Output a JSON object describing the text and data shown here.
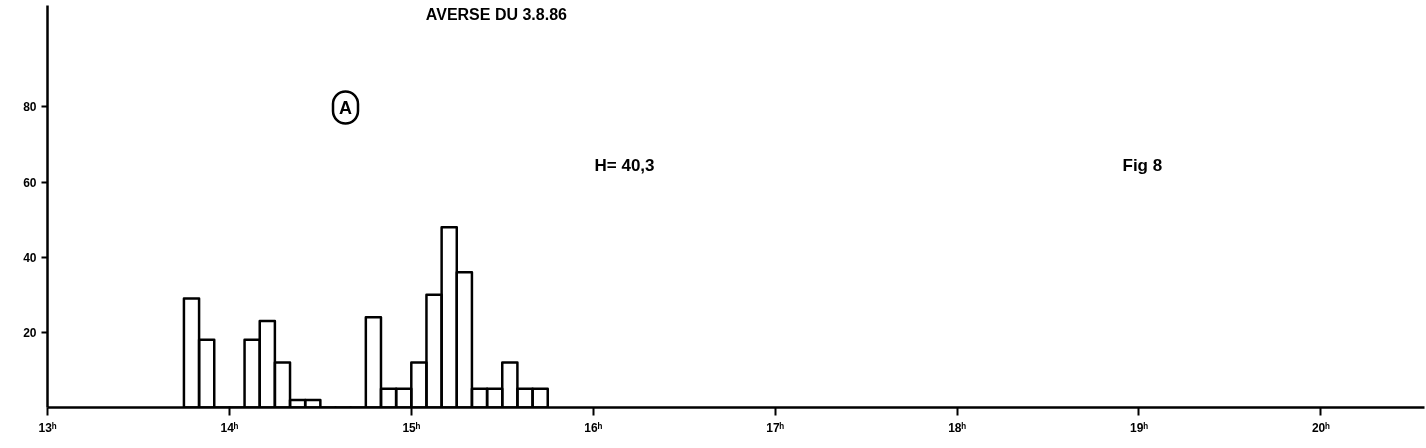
{
  "chart_data": {
    "type": "histogram",
    "title": "AVERSE DU  3.8.86",
    "bins": [
      13.75,
      13.8333,
      13.9167,
      14.0,
      14.0833,
      14.1667,
      14.25,
      14.3333,
      14.4167,
      14.5,
      14.5833,
      14.6667,
      14.75,
      14.8333,
      14.9167,
      15.0,
      15.0833,
      15.1667,
      15.25,
      15.3333,
      15.4167,
      15.5,
      15.5833,
      15.6667,
      15.75
    ],
    "values": [
      29,
      18,
      0,
      0,
      18,
      23,
      12,
      2,
      2,
      0,
      0,
      0,
      24,
      5,
      5,
      12,
      30,
      48,
      36,
      5,
      5,
      12,
      5,
      5
    ],
    "color": "#000000",
    "xlim": [
      13,
      20.57
    ],
    "ylim": [
      0,
      107
    ],
    "xticks": [
      {
        "value": 13,
        "label": "13ʰ"
      },
      {
        "value": 14,
        "label": "14ʰ"
      },
      {
        "value": 15,
        "label": "15ʰ"
      },
      {
        "value": 16,
        "label": "16ʰ"
      },
      {
        "value": 17,
        "label": "17ʰ"
      },
      {
        "value": 18,
        "label": "18ʰ"
      },
      {
        "value": 19,
        "label": "19ʰ"
      },
      {
        "value": 20,
        "label": "20ʰ"
      }
    ],
    "yticks": [
      20,
      40,
      60,
      80
    ],
    "grid": false,
    "annotations": [
      "A",
      "H= 40,3",
      "Fig 8"
    ]
  }
}
